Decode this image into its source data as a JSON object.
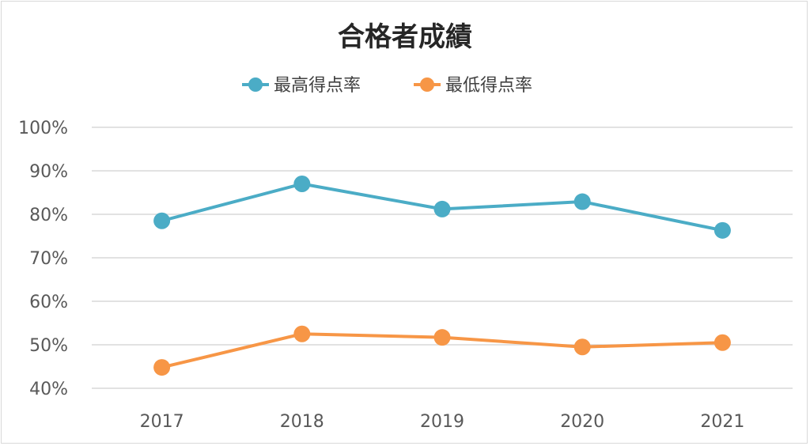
{
  "chart_data": {
    "type": "line",
    "title": "合格者成績",
    "categories": [
      "2017",
      "2018",
      "2019",
      "2020",
      "2021"
    ],
    "series": [
      {
        "name": "最高得点率",
        "color": "#4bacc6",
        "values": [
          78.5,
          87.0,
          81.2,
          82.9,
          76.3
        ]
      },
      {
        "name": "最低得点率",
        "color": "#f79646",
        "values": [
          44.8,
          52.5,
          51.7,
          49.5,
          50.5
        ]
      }
    ],
    "ylim": [
      40,
      100
    ],
    "yticks": [
      40,
      50,
      60,
      70,
      80,
      90,
      100
    ],
    "ytick_labels": [
      "40%",
      "50%",
      "60%",
      "70%",
      "80%",
      "90%",
      "100%"
    ],
    "grid": true,
    "legend_position": "top",
    "gridline_color": "#d9d9d9"
  }
}
